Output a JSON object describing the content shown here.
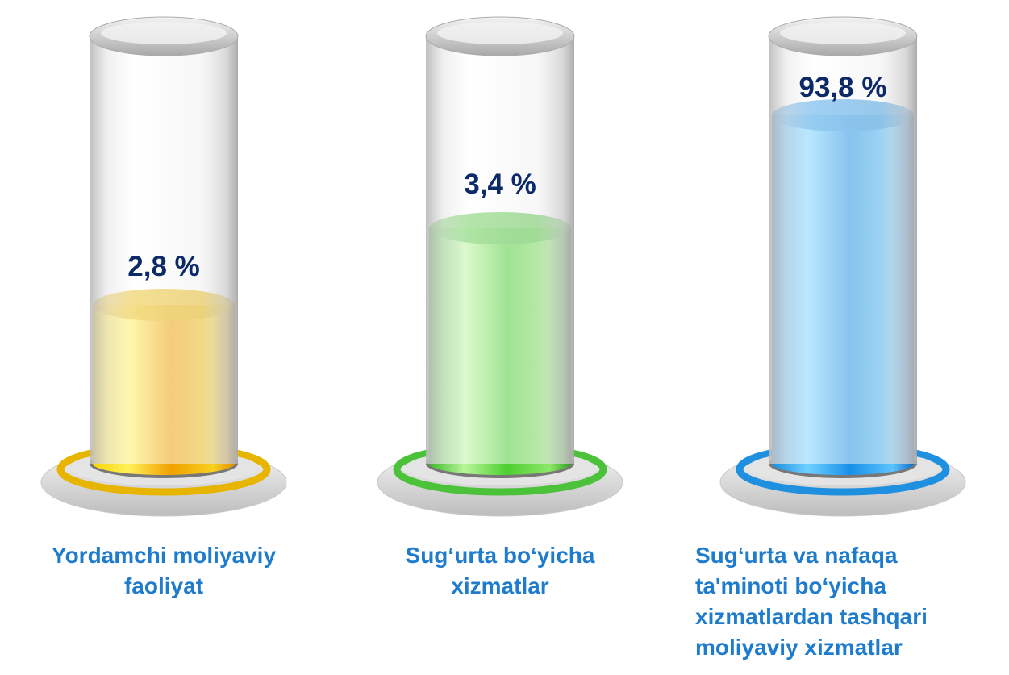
{
  "items": [
    {
      "value": "2,8 %",
      "label": [
        "Yordamchi moliyaviy",
        "faoliyat"
      ]
    },
    {
      "value": "3,4 %",
      "label": [
        "Sug‘urta bo‘yicha",
        "xizmatlar"
      ]
    },
    {
      "value": "93,8 %",
      "label": [
        "Sug‘urta va nafaqa",
        "ta'minoti bo‘yicha",
        "xizmatlardan tashqari",
        "moliyaviy xizmatlar"
      ]
    }
  ]
}
